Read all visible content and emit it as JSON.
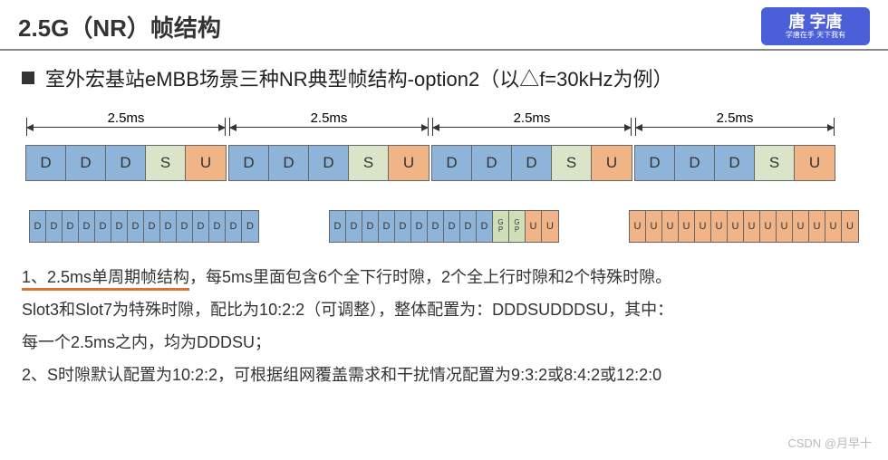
{
  "header": {
    "title": "2.5G（NR）帧结构",
    "logo_main": "唐 字唐",
    "logo_sub": "学唐在手 天下我有"
  },
  "subtitle": "室外宏基站eMBB场景三种NR典型帧结构-option2（以△f=30kHz为例）",
  "frame": {
    "period_label": "2.5ms",
    "slot_colors": {
      "D": "#8fb4d9",
      "S": "#d9e4c8",
      "U": "#f0b486",
      "GP": "#cfe0b8"
    },
    "border_color": "#666666",
    "periods": [
      {
        "slots": [
          "D",
          "D",
          "D",
          "S",
          "U"
        ]
      },
      {
        "slots": [
          "D",
          "D",
          "D",
          "S",
          "U"
        ]
      },
      {
        "slots": [
          "D",
          "D",
          "D",
          "S",
          "U"
        ]
      },
      {
        "slots": [
          "D",
          "D",
          "D",
          "S",
          "U"
        ]
      }
    ],
    "details": [
      {
        "symbols": [
          "D",
          "D",
          "D",
          "D",
          "D",
          "D",
          "D",
          "D",
          "D",
          "D",
          "D",
          "D",
          "D",
          "D"
        ]
      },
      {
        "symbols": [
          "D",
          "D",
          "D",
          "D",
          "D",
          "D",
          "D",
          "D",
          "D",
          "D",
          "GP",
          "GP",
          "U",
          "U"
        ]
      },
      {
        "symbols": [
          "U",
          "U",
          "U",
          "U",
          "U",
          "U",
          "U",
          "U",
          "U",
          "U",
          "U",
          "U",
          "U",
          "U"
        ]
      }
    ]
  },
  "text": {
    "line1_u": "1、2.5ms单周期帧结构",
    "line1_rest": "，每5ms里面包含6个全下行时隙，2个全上行时隙和2个特殊时隙。",
    "line2": "Slot3和Slot7为特殊时隙，配比为10:2:2（可调整），整体配置为：DDDSUDDDSU，其中：",
    "line3": "每一个2.5ms之内，均为DDDSU；",
    "line4": "2、S时隙默认配置为10:2:2，可根据组网覆盖需求和干扰情况配置为9:3:2或8:4:2或12:2:0"
  },
  "watermark": "CSDN @月早十"
}
